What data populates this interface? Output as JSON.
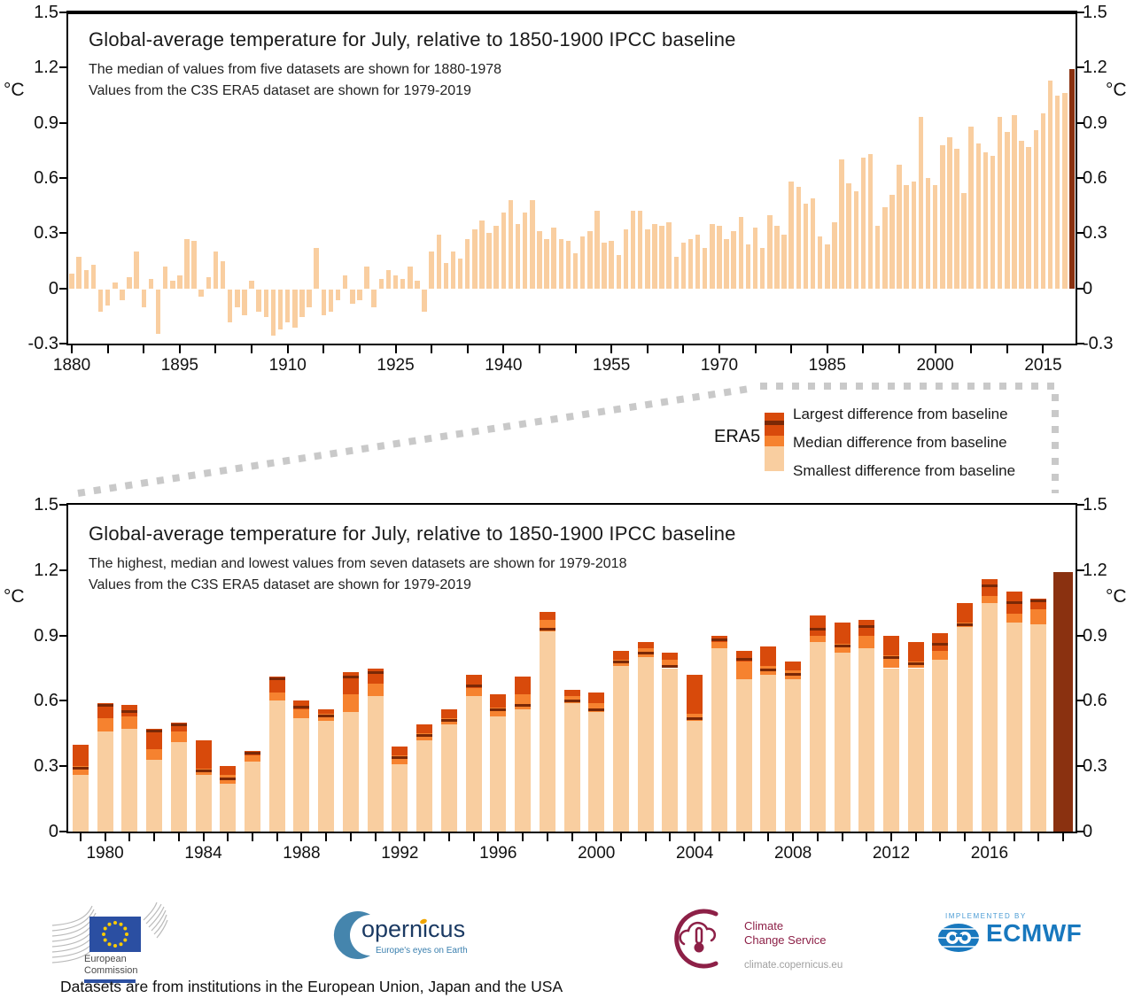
{
  "colors": {
    "smallest": "#F9CEA0",
    "median": "#F6822F",
    "largest": "#D84A0B",
    "era5_line": "#7A2806",
    "era5_2019_bar": "#8A3110",
    "dash": "#C9C9C9",
    "axis": "#000000",
    "eu_blue": "#2B4FA2",
    "eu_star_yellow": "#FFCC00",
    "copernicus_blue": "#4585AD",
    "copernicus_dark": "#1B3A63",
    "c3s_maroon": "#8D2047",
    "ecmwf_blue": "#1878BE"
  },
  "legend": {
    "era5_label": "ERA5",
    "items": [
      "Largest difference from baseline",
      "Median difference from baseline",
      "Smallest difference from baseline"
    ]
  },
  "chart_data": [
    {
      "type": "bar",
      "title": "Global-average temperature for July, relative to 1850-1900 IPCC baseline",
      "subtitle_lines": [
        "The median of values from five datasets are shown for 1880-1978",
        "Values from the C3S ERA5 dataset are shown for 1979-2019"
      ],
      "ylabel": "°C",
      "ylim": [
        -0.3,
        1.5
      ],
      "y_ticks": [
        1.5,
        1.2,
        0.9,
        0.6,
        0.3,
        0,
        -0.3
      ],
      "x_labeled_ticks": [
        1880,
        1895,
        1910,
        1925,
        1940,
        1955,
        1970,
        1985,
        2000,
        2015
      ],
      "x_minor_tick_step": 5,
      "grid": false,
      "start_year": 1880,
      "final_year": 2019,
      "values": [
        0.08,
        0.17,
        0.1,
        0.13,
        -0.12,
        -0.09,
        0.03,
        -0.06,
        0.06,
        0.2,
        -0.1,
        0.05,
        -0.24,
        0.12,
        0.04,
        0.07,
        0.27,
        0.26,
        -0.04,
        0.06,
        0.2,
        0.15,
        -0.18,
        -0.1,
        -0.14,
        0.04,
        -0.12,
        -0.15,
        -0.25,
        -0.22,
        -0.18,
        -0.21,
        -0.15,
        -0.1,
        0.22,
        -0.14,
        -0.12,
        -0.06,
        0.07,
        -0.08,
        -0.06,
        0.12,
        -0.1,
        0.05,
        0.1,
        0.07,
        0.05,
        0.12,
        0.04,
        -0.12,
        0.2,
        0.29,
        0.14,
        0.2,
        0.16,
        0.27,
        0.32,
        0.37,
        0.3,
        0.34,
        0.41,
        0.48,
        0.35,
        0.41,
        0.48,
        0.31,
        0.27,
        0.33,
        0.27,
        0.26,
        0.19,
        0.28,
        0.31,
        0.42,
        0.25,
        0.26,
        0.18,
        0.32,
        0.42,
        0.42,
        0.32,
        0.35,
        0.34,
        0.36,
        0.17,
        0.25,
        0.27,
        0.29,
        0.22,
        0.35,
        0.34,
        0.27,
        0.31,
        0.39,
        0.24,
        0.33,
        0.22,
        0.4,
        0.34,
        0.29,
        0.58,
        0.55,
        0.46,
        0.49,
        0.28,
        0.24,
        0.36,
        0.7,
        0.57,
        0.53,
        0.71,
        0.73,
        0.34,
        0.44,
        0.51,
        0.67,
        0.56,
        0.58,
        0.93,
        0.6,
        0.56,
        0.78,
        0.82,
        0.76,
        0.52,
        0.88,
        0.79,
        0.74,
        0.72,
        0.93,
        0.85,
        0.94,
        0.8,
        0.77,
        0.86,
        0.95,
        1.13,
        1.05,
        1.06,
        1.19
      ]
    },
    {
      "type": "stacked-bar",
      "title": "Global-average temperature for July, relative to 1850-1900 IPCC baseline",
      "subtitle_lines": [
        "The highest, median and lowest values from seven datasets are shown for 1979-2018",
        "Values from the C3S ERA5 dataset are shown for 1979-2019"
      ],
      "ylabel": "°C",
      "ylim": [
        0,
        1.5
      ],
      "y_ticks": [
        1.5,
        1.2,
        0.9,
        0.6,
        0.3,
        0
      ],
      "x_labeled_ticks": [
        1980,
        1984,
        1988,
        1992,
        1996,
        2000,
        2004,
        2008,
        2012,
        2016
      ],
      "x_minor_tick_step": 1,
      "grid": false,
      "start_year": 1979,
      "final_year": 2019,
      "era5_2019": 1.19,
      "series": [
        {
          "key": "smallest",
          "name": "Smallest difference from baseline",
          "values": [
            0.26,
            0.46,
            0.47,
            0.33,
            0.41,
            0.26,
            0.22,
            0.32,
            0.6,
            0.52,
            0.51,
            0.55,
            0.62,
            0.31,
            0.42,
            0.49,
            0.62,
            0.53,
            0.56,
            0.92,
            0.59,
            0.55,
            0.76,
            0.8,
            0.75,
            0.51,
            0.84,
            0.7,
            0.72,
            0.7,
            0.87,
            0.82,
            0.84,
            0.75,
            0.75,
            0.79,
            0.94,
            1.05,
            0.96,
            0.95
          ]
        },
        {
          "key": "median",
          "name": "Median difference from baseline",
          "values": [
            0.3,
            0.52,
            0.53,
            0.38,
            0.46,
            0.29,
            0.26,
            0.35,
            0.64,
            0.56,
            0.54,
            0.63,
            0.68,
            0.35,
            0.45,
            0.52,
            0.66,
            0.57,
            0.63,
            0.97,
            0.62,
            0.59,
            0.79,
            0.84,
            0.79,
            0.54,
            0.87,
            0.78,
            0.76,
            0.74,
            0.9,
            0.86,
            0.9,
            0.81,
            0.78,
            0.83,
            0.96,
            1.08,
            1.0,
            1.02
          ]
        },
        {
          "key": "largest",
          "name": "Largest difference from baseline",
          "values": [
            0.4,
            0.59,
            0.58,
            0.47,
            0.5,
            0.42,
            0.3,
            0.37,
            0.71,
            0.6,
            0.56,
            0.73,
            0.75,
            0.39,
            0.49,
            0.56,
            0.72,
            0.63,
            0.71,
            1.01,
            0.65,
            0.64,
            0.83,
            0.87,
            0.82,
            0.72,
            0.9,
            0.83,
            0.85,
            0.78,
            0.99,
            0.96,
            0.97,
            0.9,
            0.87,
            0.91,
            1.05,
            1.16,
            1.1,
            1.07
          ]
        },
        {
          "key": "era5",
          "name": "ERA5",
          "values": [
            0.29,
            0.58,
            0.55,
            0.46,
            0.49,
            0.28,
            0.24,
            0.36,
            0.7,
            0.57,
            0.53,
            0.71,
            0.73,
            0.34,
            0.44,
            0.51,
            0.67,
            0.56,
            0.58,
            0.93,
            0.6,
            0.56,
            0.78,
            0.82,
            0.76,
            0.52,
            0.88,
            0.79,
            0.74,
            0.72,
            0.93,
            0.85,
            0.94,
            0.8,
            0.77,
            0.86,
            0.95,
            1.13,
            1.05,
            1.06
          ]
        }
      ]
    }
  ],
  "logos": {
    "ec": {
      "line1": "European",
      "line2": "Commission"
    },
    "copernicus": {
      "wordmark": "opernicus",
      "tagline": "Europe's eyes on Earth"
    },
    "c3s": {
      "line1": "Climate",
      "line2": "Change Service",
      "url": "climate.copernicus.eu"
    },
    "ecmwf": {
      "implemented_by": "IMPLEMENTED BY",
      "name": "ECMWF"
    }
  },
  "footer": {
    "text": "Datasets are from institutions in the European Union, Japan and the USA"
  }
}
